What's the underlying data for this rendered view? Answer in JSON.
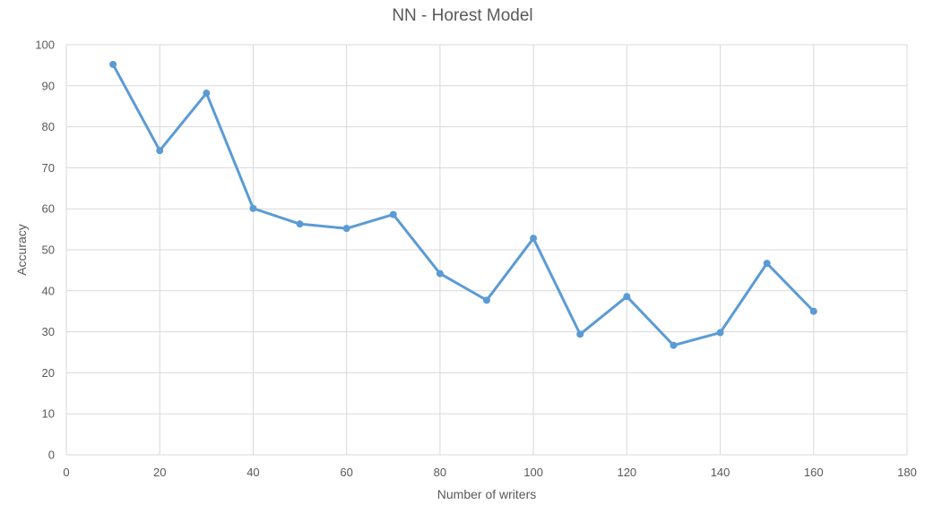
{
  "chart_data": {
    "type": "line",
    "title": "NN - Horest Model",
    "xlabel": "Number of writers",
    "ylabel": "Accuracy",
    "xlim": [
      0,
      180
    ],
    "ylim": [
      0,
      100
    ],
    "xticks": [
      0,
      20,
      40,
      60,
      80,
      100,
      120,
      140,
      160,
      180
    ],
    "yticks": [
      0,
      10,
      20,
      30,
      40,
      50,
      60,
      70,
      80,
      90,
      100
    ],
    "grid": true,
    "legend": "none",
    "series": [
      {
        "color": "#5B9BD5",
        "x": [
          10,
          20,
          30,
          40,
          50,
          60,
          70,
          80,
          90,
          100,
          110,
          120,
          130,
          140,
          150,
          160
        ],
        "y": [
          95.2,
          74.2,
          88.2,
          60.1,
          56.3,
          55.2,
          58.6,
          44.2,
          37.7,
          52.8,
          29.4,
          38.6,
          26.7,
          29.8,
          46.7,
          35.0
        ]
      }
    ]
  }
}
